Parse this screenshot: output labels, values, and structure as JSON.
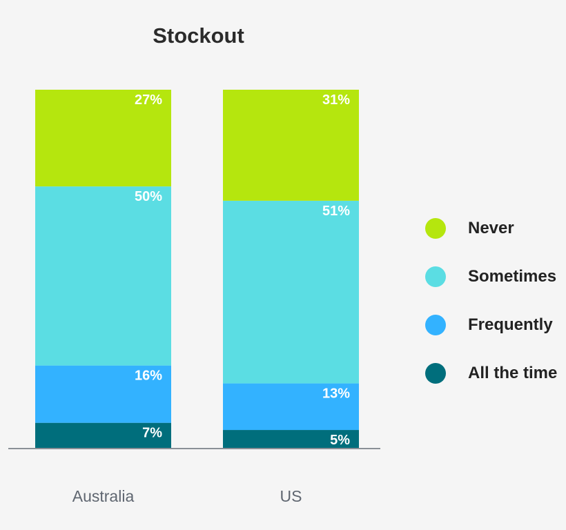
{
  "chart_data": {
    "type": "bar",
    "stacked": true,
    "title": "Stockout",
    "xlabel": "",
    "ylabel": "",
    "categories": [
      "Australia",
      "US"
    ],
    "ylim": [
      0,
      100
    ],
    "grid": false,
    "legend_position": "right",
    "series": [
      {
        "name": "All the time",
        "color": "#006e7c",
        "values": [
          7,
          5
        ],
        "labels": [
          "7%",
          "5%"
        ]
      },
      {
        "name": "Frequently",
        "color": "#33b2ff",
        "values": [
          16,
          13
        ],
        "labels": [
          "16%",
          "13%"
        ]
      },
      {
        "name": "Sometimes",
        "color": "#5bdde3",
        "values": [
          50,
          51
        ],
        "labels": [
          "50%",
          "51%"
        ]
      },
      {
        "name": "Never",
        "color": "#b5e60e",
        "values": [
          27,
          31
        ],
        "labels": [
          "27%",
          "31%"
        ]
      }
    ],
    "legend_order": [
      "Never",
      "Sometimes",
      "Frequently",
      "All the time"
    ]
  }
}
